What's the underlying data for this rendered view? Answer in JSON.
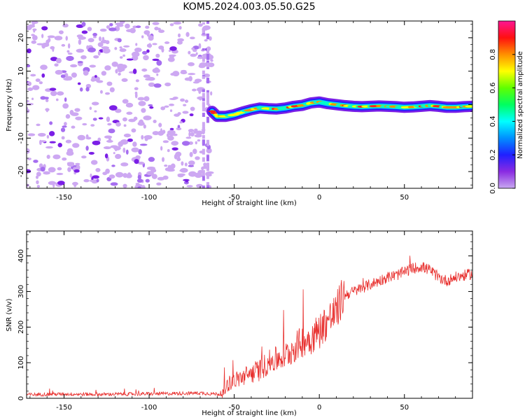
{
  "title": "KOM5.2024.003.05.50.G25",
  "chart_data": [
    {
      "type": "heatmap",
      "xlabel": "Height of straight line (km)",
      "ylabel": "Frequency (Hz)",
      "xlim": [
        -172,
        90
      ],
      "ylim": [
        -25,
        25
      ],
      "xticks": [
        -150,
        -100,
        -50,
        0,
        50
      ],
      "yticks": [
        -20,
        -10,
        0,
        10,
        20
      ],
      "colorbar": {
        "label": "Normalized spectral amplitude",
        "range": [
          0,
          1
        ],
        "ticks": [
          "0.0",
          "0.2",
          "0.4",
          "0.6",
          "0.8"
        ],
        "colormap": "gist_rainbow",
        "min_color": "#c8a8f0",
        "max_color": "#ff1493"
      },
      "signal_track": [
        {
          "x": -63,
          "y": -2.0
        },
        {
          "x": -60,
          "y": -3.5
        },
        {
          "x": -55,
          "y": -3.5
        },
        {
          "x": -50,
          "y": -3.0
        },
        {
          "x": -45,
          "y": -2.2
        },
        {
          "x": -40,
          "y": -1.5
        },
        {
          "x": -35,
          "y": -1.0
        },
        {
          "x": -30,
          "y": -1.2
        },
        {
          "x": -25,
          "y": -1.3
        },
        {
          "x": -20,
          "y": -1.0
        },
        {
          "x": -15,
          "y": -0.5
        },
        {
          "x": -10,
          "y": -0.2
        },
        {
          "x": -5,
          "y": 0.5
        },
        {
          "x": 0,
          "y": 0.8
        },
        {
          "x": 5,
          "y": 0.3
        },
        {
          "x": 10,
          "y": 0.0
        },
        {
          "x": 15,
          "y": -0.3
        },
        {
          "x": 20,
          "y": -0.5
        },
        {
          "x": 25,
          "y": -0.6
        },
        {
          "x": 30,
          "y": -0.5
        },
        {
          "x": 35,
          "y": -0.4
        },
        {
          "x": 40,
          "y": -0.5
        },
        {
          "x": 45,
          "y": -0.6
        },
        {
          "x": 50,
          "y": -0.8
        },
        {
          "x": 55,
          "y": -0.7
        },
        {
          "x": 60,
          "y": -0.5
        },
        {
          "x": 65,
          "y": -0.3
        },
        {
          "x": 70,
          "y": -0.5
        },
        {
          "x": 75,
          "y": -0.8
        },
        {
          "x": 80,
          "y": -0.8
        },
        {
          "x": 85,
          "y": -0.6
        },
        {
          "x": 90,
          "y": -0.5
        }
      ],
      "noise_region": {
        "x": [
          -172,
          -63
        ],
        "y": [
          -25,
          25
        ]
      }
    },
    {
      "type": "line",
      "xlabel": "Height of straight line (km)",
      "ylabel": "SNR (v/v)",
      "xlim": [
        -172,
        90
      ],
      "ylim": [
        0,
        470
      ],
      "xticks": [
        -150,
        -100,
        -50,
        0,
        50
      ],
      "yticks": [
        0,
        100,
        200,
        300,
        400
      ],
      "series": [
        {
          "color": "#e8302e",
          "points": [
            {
              "x": -172,
              "y": 10
            },
            {
              "x": -150,
              "y": 12
            },
            {
              "x": -130,
              "y": 11
            },
            {
              "x": -110,
              "y": 12
            },
            {
              "x": -90,
              "y": 13
            },
            {
              "x": -70,
              "y": 15
            },
            {
              "x": -60,
              "y": 12
            },
            {
              "x": -57,
              "y": 10
            },
            {
              "x": -54,
              "y": 40
            },
            {
              "x": -50,
              "y": 50
            },
            {
              "x": -45,
              "y": 60
            },
            {
              "x": -40,
              "y": 70
            },
            {
              "x": -35,
              "y": 80
            },
            {
              "x": -30,
              "y": 100
            },
            {
              "x": -25,
              "y": 110
            },
            {
              "x": -20,
              "y": 120
            },
            {
              "x": -15,
              "y": 140
            },
            {
              "x": -10,
              "y": 160
            },
            {
              "x": -5,
              "y": 170
            },
            {
              "x": 0,
              "y": 190
            },
            {
              "x": 5,
              "y": 220
            },
            {
              "x": 10,
              "y": 240
            },
            {
              "x": 12,
              "y": 270
            },
            {
              "x": 15,
              "y": 290
            },
            {
              "x": 20,
              "y": 300
            },
            {
              "x": 25,
              "y": 310
            },
            {
              "x": 30,
              "y": 320
            },
            {
              "x": 35,
              "y": 330
            },
            {
              "x": 40,
              "y": 340
            },
            {
              "x": 45,
              "y": 345
            },
            {
              "x": 50,
              "y": 355
            },
            {
              "x": 55,
              "y": 365
            },
            {
              "x": 60,
              "y": 370
            },
            {
              "x": 65,
              "y": 360
            },
            {
              "x": 70,
              "y": 340
            },
            {
              "x": 75,
              "y": 330
            },
            {
              "x": 80,
              "y": 340
            },
            {
              "x": 85,
              "y": 345
            },
            {
              "x": 90,
              "y": 350
            }
          ]
        }
      ]
    }
  ]
}
